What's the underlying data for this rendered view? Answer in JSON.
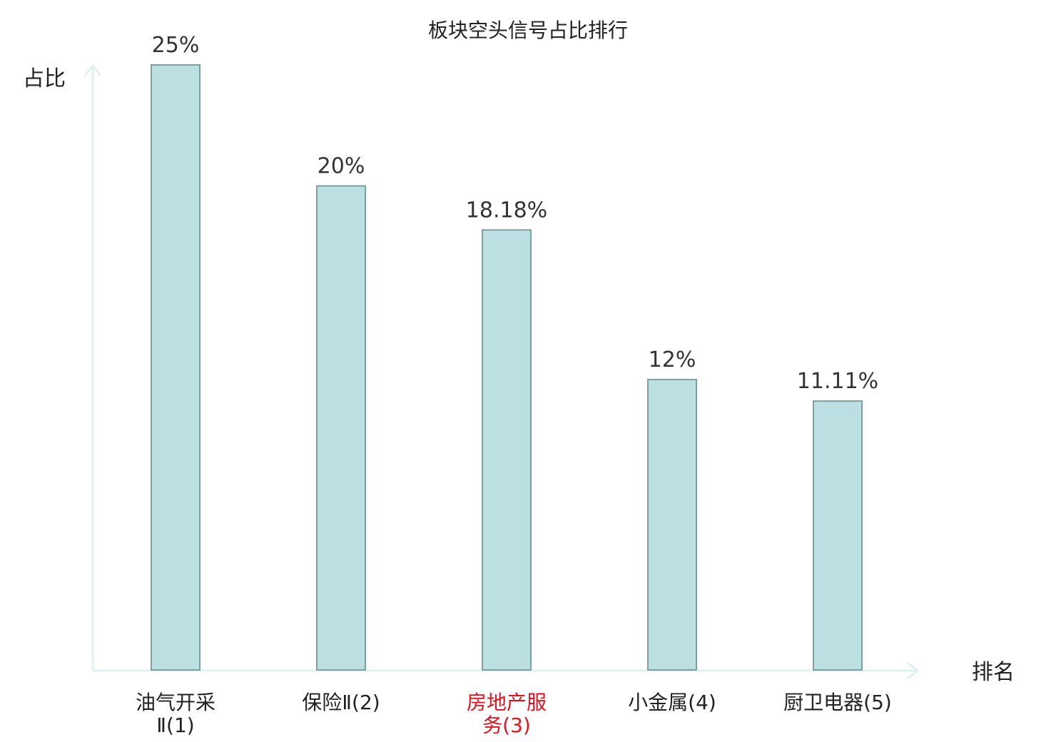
{
  "chart_data": {
    "type": "bar",
    "title": "板块空头信号占比排行",
    "ylabel": "占比",
    "xlabel": "排名",
    "categories": [
      {
        "lines": [
          "油气开采",
          "Ⅱ(1)"
        ],
        "highlight": false
      },
      {
        "lines": [
          "保险Ⅱ(2)"
        ],
        "highlight": false
      },
      {
        "lines": [
          "房地产服",
          "务(3)"
        ],
        "highlight": true
      },
      {
        "lines": [
          "小金属(4)"
        ],
        "highlight": false
      },
      {
        "lines": [
          "厨卫电器(5)"
        ],
        "highlight": false
      }
    ],
    "values": [
      25,
      20,
      18.18,
      12,
      11.11
    ],
    "value_labels": [
      "25%",
      "20%",
      "18.18%",
      "12%",
      "11.11%"
    ],
    "unit": "%",
    "ylim": [
      0,
      25
    ],
    "grid": false,
    "legend": "none"
  },
  "colors": {
    "bar_fill": "#bce0e2",
    "bar_stroke": "#7e9ea0",
    "axis": "#e0f2ef",
    "label_text": "#222222",
    "value_text": "#333333",
    "highlight_text": "#e0141e"
  }
}
